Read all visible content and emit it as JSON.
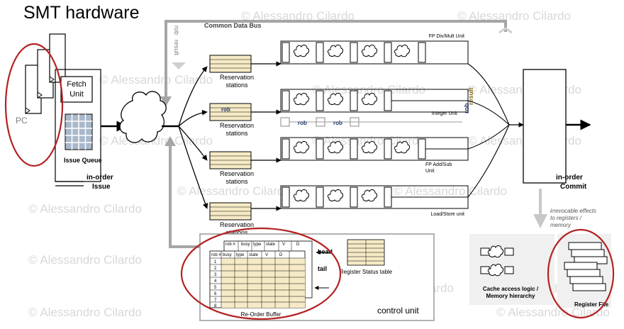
{
  "title": "SMT hardware",
  "watermark": "© Alessandro Cilardo",
  "frontend": {
    "pc": "PC",
    "fetch_unit": [
      "Fetch",
      "Unit"
    ],
    "issue_queue": "Issue Queue",
    "in_order_issue": [
      "in-order",
      "Issue"
    ]
  },
  "bus": {
    "cdb_label": "Common Data Bus",
    "rob_label": "rob",
    "result_label": "result"
  },
  "units": {
    "reservation_label": [
      "Reservation",
      "stations"
    ],
    "fp_divmult": "FP Div/Mult Unit",
    "integer": "Integer Unit",
    "fp_addsub": [
      "FP Add/Sub",
      "Unit"
    ],
    "load_store": "Load/Store unit",
    "rob_tag": "rob"
  },
  "commit": {
    "in_order_commit": [
      "in-order",
      "Commit"
    ],
    "irrevocable": [
      "irrevocable effects",
      "to registers /",
      "memory"
    ]
  },
  "memory": {
    "cache_label": [
      "Cache access logic /",
      "Memory hierarchy"
    ],
    "register_file": "Register File"
  },
  "control": {
    "control_unit": "control unit",
    "rob_caption": "Re-Order Buffer",
    "register_status_table": "Register Status table",
    "head": "head",
    "tail": "tail",
    "rob_headers": [
      "rob #",
      "busy",
      "type",
      "state",
      "V",
      "D"
    ],
    "rob_rows": [
      "1",
      "2",
      "3",
      "4",
      "5",
      "6",
      "7",
      "8"
    ]
  },
  "colors": {
    "highlight_red": "#b22222",
    "queue_blue": "#aab8cc",
    "station_yellow": "#f6eac6",
    "bus_gray": "#a6a6a6",
    "rob_tag_blue": "#1f3a6b",
    "result_brown": "#8a6d1a"
  }
}
